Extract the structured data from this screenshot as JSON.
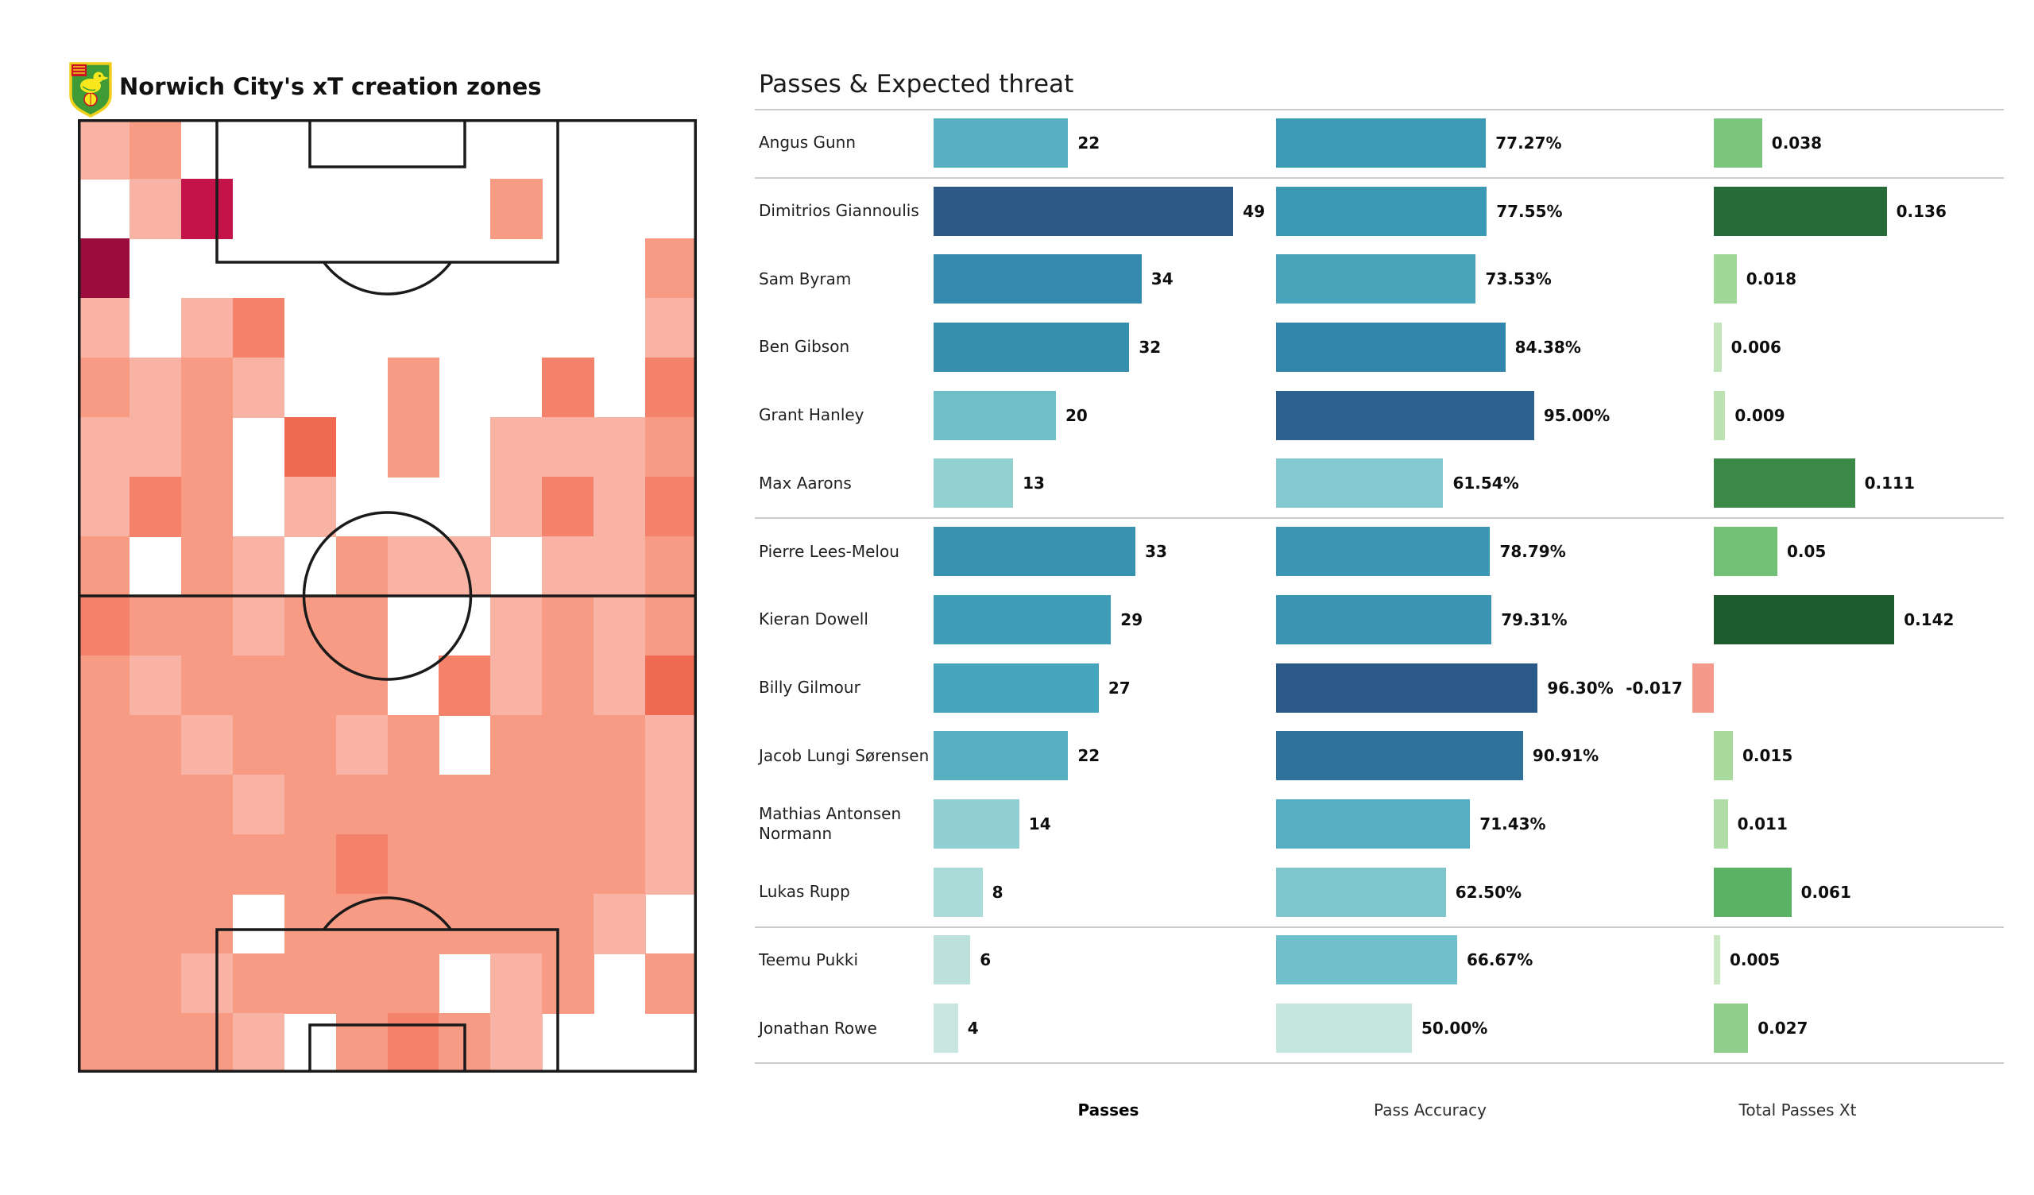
{
  "left_panel": {
    "title": "Norwich City's xT creation zones",
    "badge": "norwich-city-crest",
    "pitch": {
      "line_color": "#1a1a1a",
      "background": "#ffffff"
    },
    "heatmap": {
      "rows": 16,
      "cols": 12,
      "palette": {
        "0": "transparent",
        "1": "#fcd4c9",
        "2": "#f9b3a5",
        "3": "#f89b85",
        "4": "#f4826b",
        "5": "#f06a52",
        "6": "#c31349",
        "7": "#9c0c3c"
      },
      "grid": [
        [
          2,
          3,
          0,
          0,
          0,
          0,
          0,
          0,
          0,
          0,
          0,
          0
        ],
        [
          0,
          2,
          6,
          0,
          0,
          0,
          0,
          0,
          3,
          0,
          0,
          0
        ],
        [
          7,
          0,
          0,
          0,
          0,
          0,
          0,
          0,
          0,
          0,
          0,
          3
        ],
        [
          2,
          0,
          2,
          4,
          0,
          0,
          0,
          0,
          0,
          0,
          0,
          2
        ],
        [
          3,
          2,
          3,
          2,
          0,
          0,
          3,
          0,
          0,
          4,
          0,
          4
        ],
        [
          2,
          2,
          3,
          0,
          5,
          0,
          3,
          0,
          2,
          2,
          2,
          3
        ],
        [
          2,
          4,
          3,
          0,
          2,
          0,
          0,
          0,
          2,
          4,
          2,
          4
        ],
        [
          3,
          0,
          3,
          2,
          0,
          3,
          2,
          2,
          0,
          2,
          2,
          3
        ],
        [
          4,
          3,
          3,
          2,
          3,
          3,
          0,
          0,
          2,
          3,
          2,
          3
        ],
        [
          3,
          2,
          3,
          3,
          3,
          3,
          0,
          4,
          2,
          3,
          2,
          5
        ],
        [
          3,
          3,
          2,
          3,
          3,
          2,
          3,
          0,
          3,
          3,
          3,
          2
        ],
        [
          3,
          3,
          3,
          2,
          3,
          3,
          3,
          3,
          3,
          3,
          3,
          2
        ],
        [
          3,
          3,
          3,
          3,
          3,
          4,
          3,
          3,
          3,
          3,
          3,
          2
        ],
        [
          3,
          3,
          3,
          0,
          3,
          3,
          3,
          3,
          3,
          3,
          2,
          0
        ],
        [
          3,
          3,
          2,
          3,
          3,
          3,
          3,
          0,
          2,
          3,
          0,
          3
        ],
        [
          3,
          3,
          3,
          2,
          0,
          3,
          4,
          3,
          2,
          0,
          0,
          0
        ]
      ]
    }
  },
  "right_panel": {
    "title": "Passes & Expected threat",
    "footer": {
      "passes_label": "Passes",
      "accuracy_label": "Pass Accuracy",
      "xt_label": "Total Passes Xt"
    },
    "group_breaks_after": [
      0,
      5,
      11,
      13
    ],
    "players": [
      {
        "name": "Angus Gunn",
        "passes": 22,
        "passes_color": "#57b0c1",
        "accuracy_value": 77.27,
        "accuracy_label": "77.27%",
        "accuracy_color": "#3d9ab5",
        "xt_value": 0.038,
        "xt_label": "0.038",
        "xt_color": "#7cc57d"
      },
      {
        "name": "Dimitrios Giannoulis",
        "passes": 49,
        "passes_color": "#2c5985",
        "accuracy_value": 77.55,
        "accuracy_label": "77.55%",
        "accuracy_color": "#3c99b4",
        "xt_value": 0.136,
        "xt_label": "0.136",
        "xt_color": "#276b38"
      },
      {
        "name": "Sam Byram",
        "passes": 34,
        "passes_color": "#3389ae",
        "accuracy_value": 73.53,
        "accuracy_label": "73.53%",
        "accuracy_color": "#47a4bb",
        "xt_value": 0.018,
        "xt_label": "0.018",
        "xt_color": "#a2d79a"
      },
      {
        "name": "Ben Gibson",
        "passes": 32,
        "passes_color": "#358fad",
        "accuracy_value": 84.38,
        "accuracy_label": "84.38%",
        "accuracy_color": "#3286ab",
        "xt_value": 0.006,
        "xt_label": "0.006",
        "xt_color": "#c3e5ba"
      },
      {
        "name": "Grant Hanley",
        "passes": 20,
        "passes_color": "#6fbfc9",
        "accuracy_value": 95.0,
        "accuracy_label": "95.00%",
        "accuracy_color": "#2d6190",
        "xt_value": 0.009,
        "xt_label": "0.009",
        "xt_color": "#bce2b2"
      },
      {
        "name": "Max Aarons",
        "passes": 13,
        "passes_color": "#92d0d0",
        "accuracy_value": 61.54,
        "accuracy_label": "61.54%",
        "accuracy_color": "#84c9cf",
        "xt_value": 0.111,
        "xt_label": "0.111",
        "xt_color": "#3c8a48"
      },
      {
        "name": "Pierre Lees-Melou",
        "passes": 33,
        "passes_color": "#3793b0",
        "accuracy_value": 78.79,
        "accuracy_label": "78.79%",
        "accuracy_color": "#3b96b3",
        "xt_value": 0.05,
        "xt_label": "0.05",
        "xt_color": "#71c075"
      },
      {
        "name": "Kieran Dowell",
        "passes": 29,
        "passes_color": "#3f9db7",
        "accuracy_value": 79.31,
        "accuracy_label": "79.31%",
        "accuracy_color": "#3a95b2",
        "xt_value": 0.142,
        "xt_label": "0.142",
        "xt_color": "#1d5c2c"
      },
      {
        "name": "Billy Gilmour",
        "passes": 27,
        "passes_color": "#46a4bc",
        "accuracy_value": 96.3,
        "accuracy_label": "96.30%",
        "accuracy_color": "#2b5a88",
        "xt_value": -0.017,
        "xt_label": "-0.017",
        "xt_color": "#f5998b"
      },
      {
        "name": "Jacob  Lungi Sørensen",
        "passes": 22,
        "passes_color": "#57b0c1",
        "accuracy_value": 90.91,
        "accuracy_label": "90.91%",
        "accuracy_color": "#2f729c",
        "xt_value": 0.015,
        "xt_label": "0.015",
        "xt_color": "#a8da9e"
      },
      {
        "name": "Mathias  Antonsen Normann",
        "passes": 14,
        "passes_color": "#8fcfd3",
        "accuracy_value": 71.43,
        "accuracy_label": "71.43%",
        "accuracy_color": "#55aec2",
        "xt_value": 0.011,
        "xt_label": "0.011",
        "xt_color": "#b0dda7"
      },
      {
        "name": "Lukas Rupp",
        "passes": 8,
        "passes_color": "#abdbd9",
        "accuracy_value": 62.5,
        "accuracy_label": "62.50%",
        "accuracy_color": "#7fc7cd",
        "xt_value": 0.061,
        "xt_label": "0.061",
        "xt_color": "#5cb264"
      },
      {
        "name": "Teemu Pukki",
        "passes": 6,
        "passes_color": "#bce1dd",
        "accuracy_value": 66.67,
        "accuracy_label": "66.67%",
        "accuracy_color": "#6fc0ca",
        "xt_value": 0.005,
        "xt_label": "0.005",
        "xt_color": "#cae8c1"
      },
      {
        "name": "Jonathan Rowe",
        "passes": 4,
        "passes_color": "#c9e6e0",
        "accuracy_value": 50.0,
        "accuracy_label": "50.00%",
        "accuracy_color": "#c5e5df",
        "xt_value": 0.027,
        "xt_label": "0.027",
        "xt_color": "#90ce8b"
      }
    ]
  },
  "chart_data": [
    {
      "type": "heatmap",
      "title": "Norwich City's xT creation zones",
      "rows": 16,
      "cols": 12,
      "orientation": "vertical-pitch, attacking top goal",
      "values_are": "relative xT creation intensity levels (0 = none/white, 7 = highest/dark maroon)",
      "values": [
        [
          2,
          3,
          0,
          0,
          0,
          0,
          0,
          0,
          0,
          0,
          0,
          0
        ],
        [
          0,
          2,
          6,
          0,
          0,
          0,
          0,
          0,
          3,
          0,
          0,
          0
        ],
        [
          7,
          0,
          0,
          0,
          0,
          0,
          0,
          0,
          0,
          0,
          0,
          3
        ],
        [
          2,
          0,
          2,
          4,
          0,
          0,
          0,
          0,
          0,
          0,
          0,
          2
        ],
        [
          3,
          2,
          3,
          2,
          0,
          0,
          3,
          0,
          0,
          4,
          0,
          4
        ],
        [
          2,
          2,
          3,
          0,
          5,
          0,
          3,
          0,
          2,
          2,
          2,
          3
        ],
        [
          2,
          4,
          3,
          0,
          2,
          0,
          0,
          0,
          2,
          4,
          2,
          4
        ],
        [
          3,
          0,
          3,
          2,
          0,
          3,
          2,
          2,
          0,
          2,
          2,
          3
        ],
        [
          4,
          3,
          3,
          2,
          3,
          3,
          0,
          0,
          2,
          3,
          2,
          3
        ],
        [
          3,
          2,
          3,
          3,
          3,
          3,
          0,
          4,
          2,
          3,
          2,
          5
        ],
        [
          3,
          3,
          2,
          3,
          3,
          2,
          3,
          0,
          3,
          3,
          3,
          2
        ],
        [
          3,
          3,
          3,
          2,
          3,
          3,
          3,
          3,
          3,
          3,
          3,
          2
        ],
        [
          3,
          3,
          3,
          3,
          3,
          4,
          3,
          3,
          3,
          3,
          3,
          2
        ],
        [
          3,
          3,
          3,
          0,
          3,
          3,
          3,
          3,
          3,
          3,
          2,
          0
        ],
        [
          3,
          3,
          2,
          3,
          3,
          3,
          3,
          0,
          2,
          3,
          0,
          3
        ],
        [
          3,
          3,
          3,
          2,
          0,
          3,
          4,
          3,
          2,
          0,
          0,
          0
        ]
      ],
      "palette": [
        "transparent",
        "#fcd4c9",
        "#f9b3a5",
        "#f89b85",
        "#f4826b",
        "#f06a52",
        "#c31349",
        "#9c0c3c"
      ]
    },
    {
      "type": "bar",
      "title": "Passes & Expected threat",
      "categories": [
        "Angus Gunn",
        "Dimitrios Giannoulis",
        "Sam Byram",
        "Ben Gibson",
        "Grant Hanley",
        "Max Aarons",
        "Pierre Lees-Melou",
        "Kieran Dowell",
        "Billy Gilmour",
        "Jacob  Lungi Sørensen",
        "Mathias  Antonsen Normann",
        "Lukas Rupp",
        "Teemu Pukki",
        "Jonathan Rowe"
      ],
      "series": [
        {
          "name": "Passes",
          "values": [
            22,
            49,
            34,
            32,
            20,
            13,
            33,
            29,
            27,
            22,
            14,
            8,
            6,
            4
          ]
        },
        {
          "name": "Pass Accuracy",
          "values": [
            77.27,
            77.55,
            73.53,
            84.38,
            95.0,
            61.54,
            78.79,
            79.31,
            96.3,
            90.91,
            71.43,
            62.5,
            66.67,
            50.0
          ]
        },
        {
          "name": "Total Passes Xt",
          "values": [
            0.038,
            0.136,
            0.018,
            0.006,
            0.009,
            0.111,
            0.05,
            0.142,
            -0.017,
            0.015,
            0.011,
            0.061,
            0.005,
            0.027
          ]
        }
      ],
      "layout": "horizontal bars, one row per player, value labels at bar ends, group separators after Gunn, Aarons, Rupp, Rowe",
      "legend_position": "none"
    }
  ]
}
